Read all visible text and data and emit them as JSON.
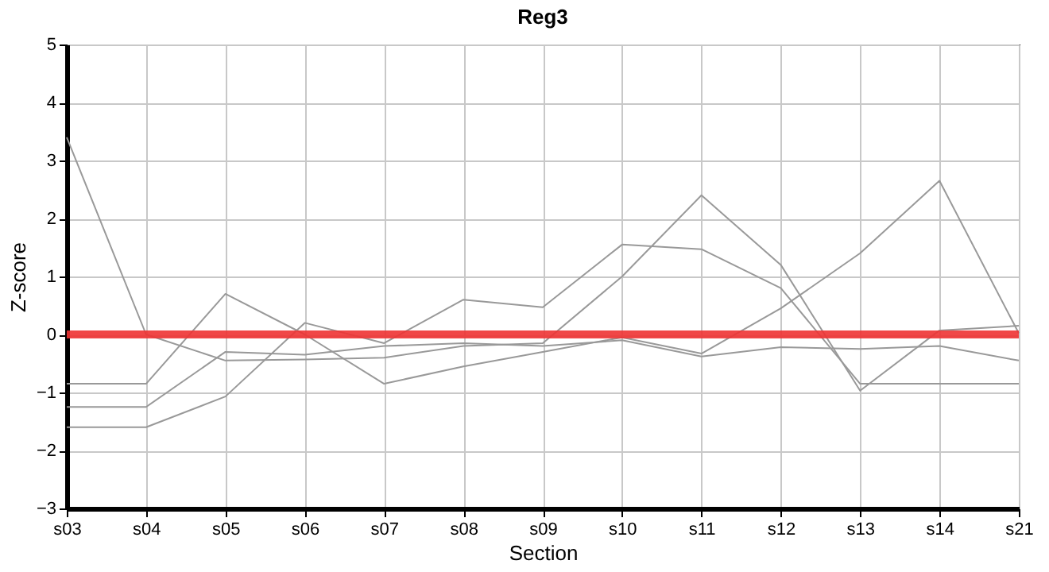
{
  "chart_data": {
    "type": "line",
    "title": "Reg3",
    "xlabel": "Section",
    "ylabel": "Z-score",
    "categories": [
      "s03",
      "s04",
      "s05",
      "s06",
      "s07",
      "s08",
      "s09",
      "s10",
      "s11",
      "s12",
      "s13",
      "s14",
      "s21"
    ],
    "series": [
      {
        "color": "#999999",
        "values": [
          -1.6,
          -1.6,
          -1.07,
          0.2,
          -0.15,
          0.6,
          0.47,
          1.55,
          1.47,
          0.8,
          -0.85,
          -0.85,
          -0.85
        ]
      },
      {
        "color": "#999999",
        "values": [
          3.4,
          0,
          -0.45,
          -0.43,
          -0.4,
          -0.2,
          -0.15,
          1.0,
          2.4,
          1.2,
          -0.97,
          0.07,
          0.15
        ]
      },
      {
        "color": "#999999",
        "values": [
          -0.85,
          -0.85,
          0.7,
          0.0,
          -0.85,
          -0.55,
          -0.3,
          -0.05,
          -0.33,
          0.45,
          1.4,
          2.65,
          0.02
        ]
      },
      {
        "color": "#999999",
        "values": [
          -1.25,
          -1.25,
          -0.3,
          -0.35,
          -0.2,
          -0.15,
          -0.2,
          -0.1,
          -0.38,
          -0.22,
          -0.25,
          -0.2,
          -0.45
        ]
      }
    ],
    "ylim": [
      -3,
      5
    ],
    "yticks": [
      -3,
      -2,
      -1,
      0,
      1,
      2,
      3,
      4,
      5
    ],
    "grid": true,
    "legend": false,
    "marker": "none",
    "line_style": "solid",
    "ref_lines": [
      {
        "axis": "y",
        "value": 0,
        "color": "#ee3333"
      }
    ]
  }
}
